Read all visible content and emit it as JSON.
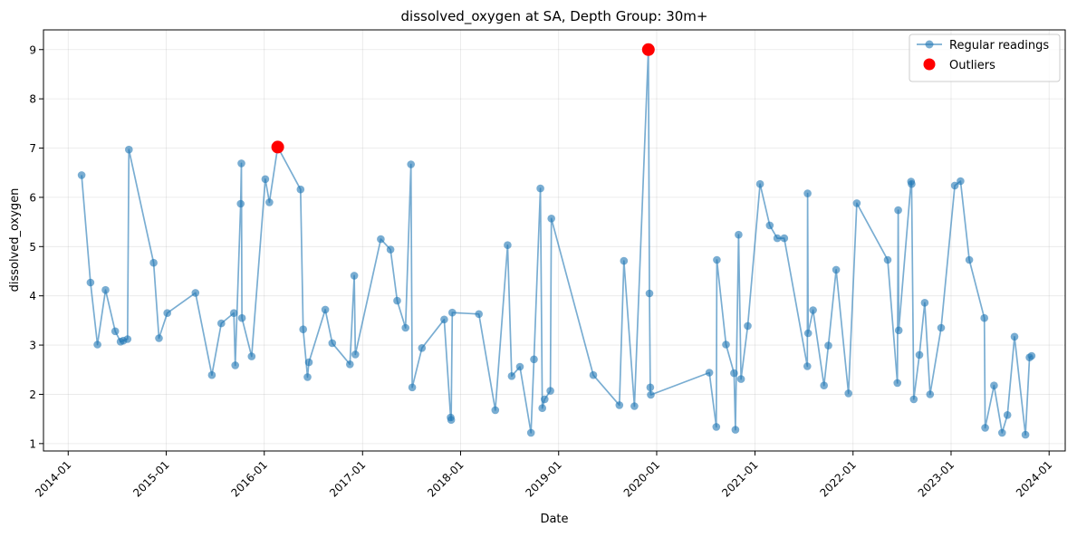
{
  "chart_data": {
    "type": "line",
    "title": "dissolved_oxygen at SA, Depth Group: 30m+",
    "xlabel": "Date",
    "ylabel": "dissolved_oxygen",
    "xlim": [
      "2013-10-01",
      "2024-03-01"
    ],
    "ylim": [
      0.85,
      9.4
    ],
    "x_ticks": [
      "2014-01",
      "2015-01",
      "2016-01",
      "2017-01",
      "2018-01",
      "2019-01",
      "2020-01",
      "2021-01",
      "2022-01",
      "2023-01",
      "2024-01"
    ],
    "y_ticks": [
      1,
      2,
      3,
      4,
      5,
      6,
      7,
      8,
      9
    ],
    "grid": true,
    "legend_position": "upper right",
    "series": [
      {
        "name": "Regular readings",
        "style": "line-with-markers",
        "color": "#1f77b4",
        "x": [
          "2014-02-20",
          "2014-03-25",
          "2014-04-20",
          "2014-05-20",
          "2014-06-25",
          "2014-07-15",
          "2014-07-25",
          "2014-08-10",
          "2014-08-15",
          "2014-11-15",
          "2014-12-05",
          "2015-01-05",
          "2015-04-20",
          "2015-06-20",
          "2015-07-25",
          "2015-09-10",
          "2015-09-15",
          "2015-10-05",
          "2015-10-08",
          "2015-10-10",
          "2015-11-15",
          "2016-01-05",
          "2016-01-20",
          "2016-02-20",
          "2016-05-15",
          "2016-05-25",
          "2016-06-10",
          "2016-06-15",
          "2016-08-15",
          "2016-09-10",
          "2016-11-15",
          "2016-12-01",
          "2016-12-05",
          "2017-03-10",
          "2017-04-15",
          "2017-05-10",
          "2017-06-10",
          "2017-06-30",
          "2017-07-05",
          "2017-08-10",
          "2017-11-01",
          "2017-11-25",
          "2017-11-27",
          "2017-12-01",
          "2018-03-10",
          "2018-05-10",
          "2018-06-25",
          "2018-07-10",
          "2018-08-10",
          "2018-09-20",
          "2018-10-01",
          "2018-10-25",
          "2018-11-01",
          "2018-11-10",
          "2018-12-01",
          "2018-12-05",
          "2019-05-10",
          "2019-08-15",
          "2019-09-01",
          "2019-10-10",
          "2019-12-01",
          "2019-12-05",
          "2019-12-08",
          "2019-12-10",
          "2020-07-15",
          "2020-08-10",
          "2020-08-12",
          "2020-09-15",
          "2020-10-15",
          "2020-10-20",
          "2020-11-01",
          "2020-11-10",
          "2020-12-05",
          "2021-01-20",
          "2021-02-25",
          "2021-03-25",
          "2021-04-20",
          "2021-07-15",
          "2021-07-16",
          "2021-07-18",
          "2021-08-05",
          "2021-09-15",
          "2021-10-01",
          "2021-10-30",
          "2021-12-15",
          "2022-01-15",
          "2022-05-10",
          "2022-06-15",
          "2022-06-18",
          "2022-06-20",
          "2022-08-05",
          "2022-08-07",
          "2022-08-15",
          "2022-09-05",
          "2022-09-25",
          "2022-10-15",
          "2022-11-25",
          "2023-01-15",
          "2023-02-05",
          "2023-03-10",
          "2023-05-05",
          "2023-05-08",
          "2023-06-10",
          "2023-07-10",
          "2023-07-30",
          "2023-08-25",
          "2023-10-05",
          "2023-10-20",
          "2023-10-28"
        ],
        "values": [
          6.45,
          4.27,
          3.01,
          4.12,
          3.28,
          3.07,
          3.09,
          3.12,
          6.97,
          4.67,
          3.14,
          3.65,
          4.06,
          2.39,
          3.44,
          3.65,
          2.59,
          5.87,
          6.69,
          3.55,
          2.77,
          6.37,
          5.9,
          7.02,
          6.16,
          3.32,
          2.35,
          2.65,
          3.72,
          3.04,
          2.61,
          4.41,
          2.81,
          5.15,
          4.94,
          3.9,
          3.35,
          6.67,
          2.14,
          2.94,
          3.52,
          1.53,
          1.48,
          3.66,
          3.63,
          1.68,
          5.03,
          2.37,
          2.56,
          1.22,
          2.71,
          6.18,
          1.72,
          1.9,
          2.07,
          5.57,
          2.39,
          1.78,
          4.71,
          1.76,
          9.0,
          4.05,
          2.14,
          1.99,
          2.44,
          1.34,
          4.73,
          3.01,
          2.43,
          1.28,
          5.24,
          2.31,
          3.39,
          6.27,
          5.43,
          5.17,
          5.17,
          2.57,
          6.08,
          3.24,
          3.71,
          2.18,
          2.99,
          4.53,
          2.02,
          5.88,
          4.73,
          2.23,
          5.74,
          3.3,
          6.32,
          6.27,
          1.9,
          2.8,
          3.86,
          2.0,
          3.35,
          6.24,
          6.33,
          4.73,
          3.55,
          1.32,
          2.18,
          1.22,
          1.58,
          3.17,
          1.18,
          2.75,
          2.78
        ]
      },
      {
        "name": "Outliers",
        "style": "markers",
        "color": "#ff0000",
        "x": [
          "2016-02-20",
          "2019-12-01"
        ],
        "values": [
          7.02,
          9.0
        ]
      }
    ]
  }
}
